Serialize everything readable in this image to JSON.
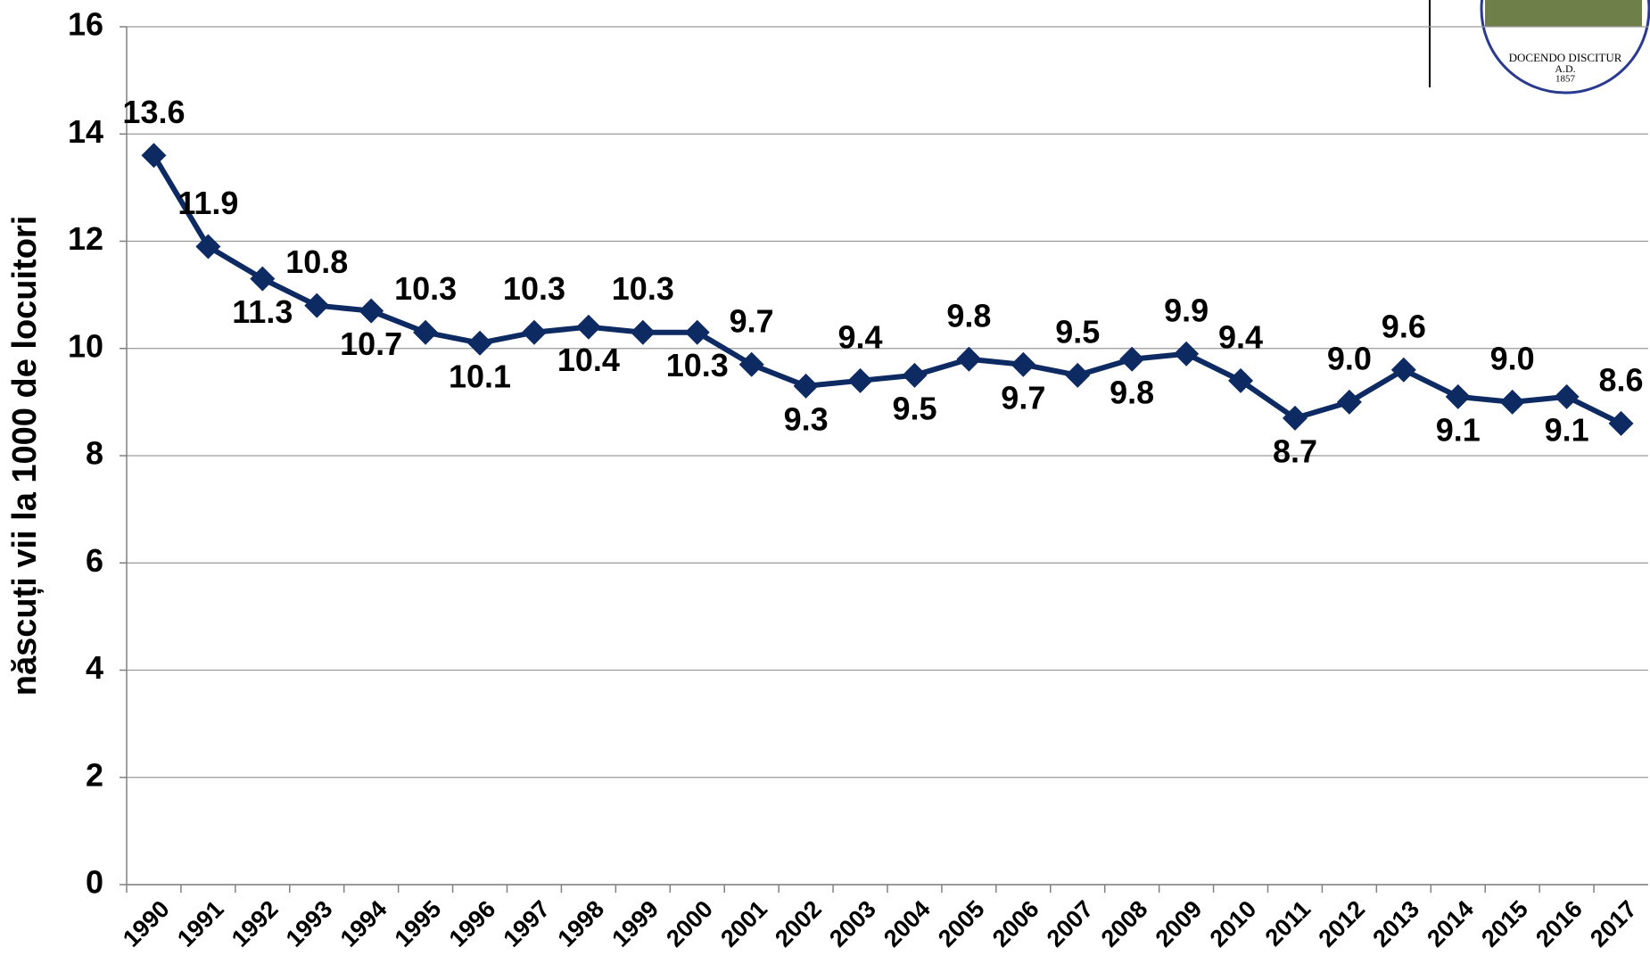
{
  "chart_data": {
    "type": "line",
    "y_label": "născuți vii la 1000 de locuitori",
    "categories": [
      "1990",
      "1991",
      "1992",
      "1993",
      "1994",
      "1995",
      "1996",
      "1997",
      "1998",
      "1999",
      "2000",
      "2001",
      "2002",
      "2003",
      "2004",
      "2005",
      "2006",
      "2007",
      "2008",
      "2009",
      "2010",
      "2011",
      "2012",
      "2013",
      "2014",
      "2015",
      "2016",
      "2017"
    ],
    "series": [
      {
        "color": "#0d2a63",
        "values": [
          13.6,
          11.9,
          11.3,
          10.8,
          10.7,
          10.3,
          10.1,
          10.3,
          10.4,
          10.3,
          10.3,
          9.7,
          9.3,
          9.4,
          9.5,
          9.8,
          9.7,
          9.5,
          9.8,
          9.9,
          9.4,
          8.7,
          9.0,
          9.6,
          9.1,
          9.0,
          9.1,
          8.6
        ],
        "value_labels": [
          "13.6",
          "11.9",
          "11.3",
          "10.8",
          "10.7",
          "10.3",
          "10.1",
          "10.3",
          "10.4",
          "10.3",
          "10.3",
          "9.7",
          "9.3",
          "9.4",
          "9.5",
          "9.8",
          "9.7",
          "9.5",
          "9.8",
          "9.9",
          "9.4",
          "8.7",
          "9.0",
          "9.6",
          "9.1",
          "9.0",
          "9.1",
          "8.6"
        ]
      }
    ],
    "ylim": [
      0,
      16
    ],
    "yticks": [
      0,
      2,
      4,
      6,
      8,
      10,
      12,
      14,
      16
    ],
    "grid": true
  },
  "logo": {
    "motto": "DOCENDO DISCITUR",
    "era": "A.D.",
    "year": "1857"
  }
}
